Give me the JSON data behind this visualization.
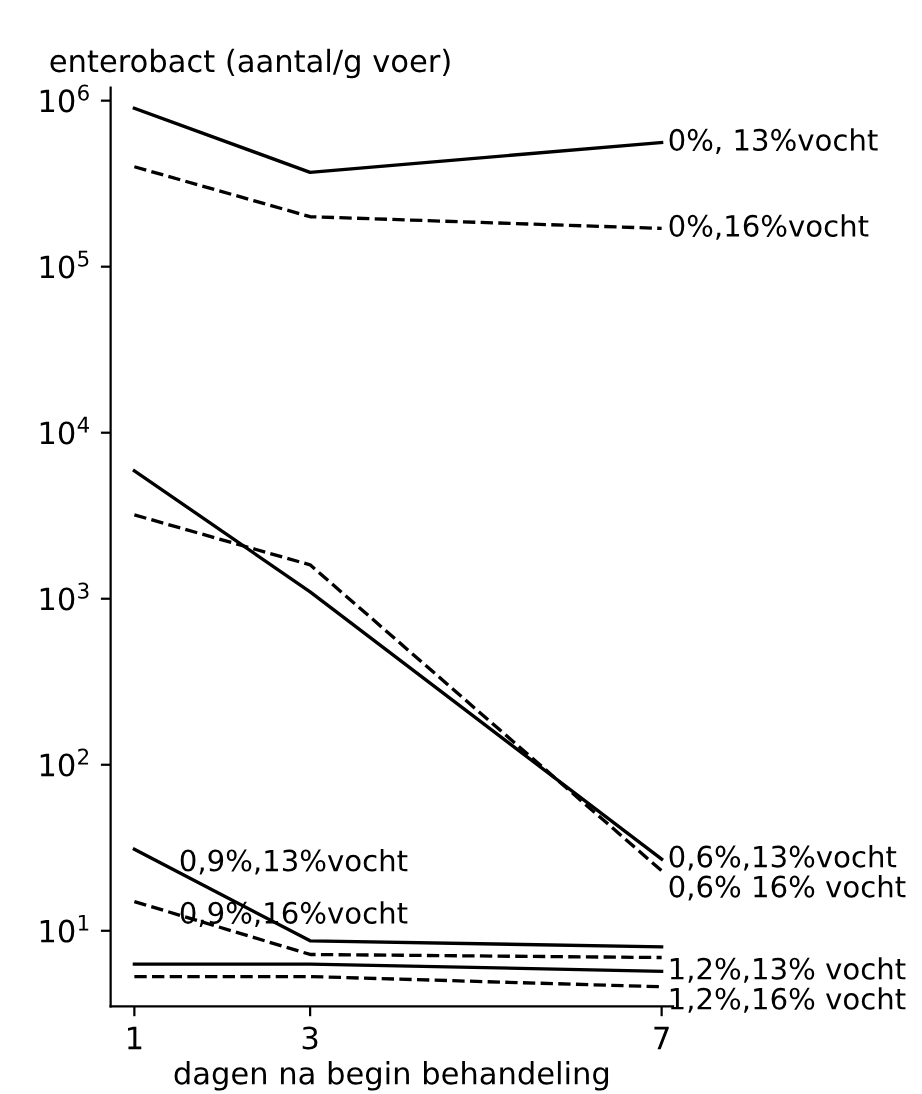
{
  "chart_data": {
    "type": "line",
    "xlabel": "dagen na begin behandeling",
    "ylabel": "enterobact (aantal/g voer)",
    "log": "y",
    "grid": false,
    "legend": false,
    "marker": "none",
    "x": [
      1,
      3,
      7
    ],
    "xlim": [
      0.73,
      7.13
    ],
    "xticks": [
      1,
      3,
      7
    ],
    "ylim": [
      3.5,
      1200000
    ],
    "yticks": [
      {
        "value": 10,
        "label": "10$^{1}$"
      },
      {
        "value": 100,
        "label": "10$^{2}$"
      },
      {
        "value": 1000,
        "label": "10$^{3}$"
      },
      {
        "value": 10000,
        "label": "10$^{4}$"
      },
      {
        "value": 100000,
        "label": "10$^{5}$"
      },
      {
        "value": 1000000,
        "label": "10$^{6}$"
      }
    ],
    "series": [
      {
        "name": "0%, 13%vocht",
        "color": "#000000",
        "line_style": "solid",
        "values": [
          900000,
          370000,
          560000
        ]
      },
      {
        "name": "0%,16%vocht",
        "color": "#000000",
        "line_style": "dashed",
        "values": [
          400000,
          200000,
          170000
        ]
      },
      {
        "name": "0,6%,13%vocht",
        "color": "#000000",
        "line_style": "solid",
        "values": [
          5900,
          1100,
          27
        ]
      },
      {
        "name": "0,6% 16% vocht",
        "color": "#000000",
        "line_style": "dashed",
        "values": [
          3200,
          1600,
          23
        ]
      },
      {
        "color": "#000000",
        "line_style": "solid",
        "values": [
          31,
          8.7,
          8
        ]
      },
      {
        "color": "#000000",
        "line_style": "dashed",
        "values": [
          15,
          7.2,
          6.9
        ]
      },
      {
        "name": "1,2%,13% vocht",
        "color": "#000000",
        "line_style": "solid",
        "values": [
          6.3,
          6.3,
          5.7
        ]
      },
      {
        "name": "1,2%,16% vocht",
        "color": "#000000",
        "line_style": "dashed",
        "values": [
          5.3,
          5.3,
          4.6
        ]
      }
    ],
    "annotations": [
      {
        "text": "0,9%,13%vocht",
        "x": 1,
        "y": 31
      },
      {
        "text": "0,9%,16%vocht",
        "x": 1,
        "y": 15
      }
    ]
  }
}
